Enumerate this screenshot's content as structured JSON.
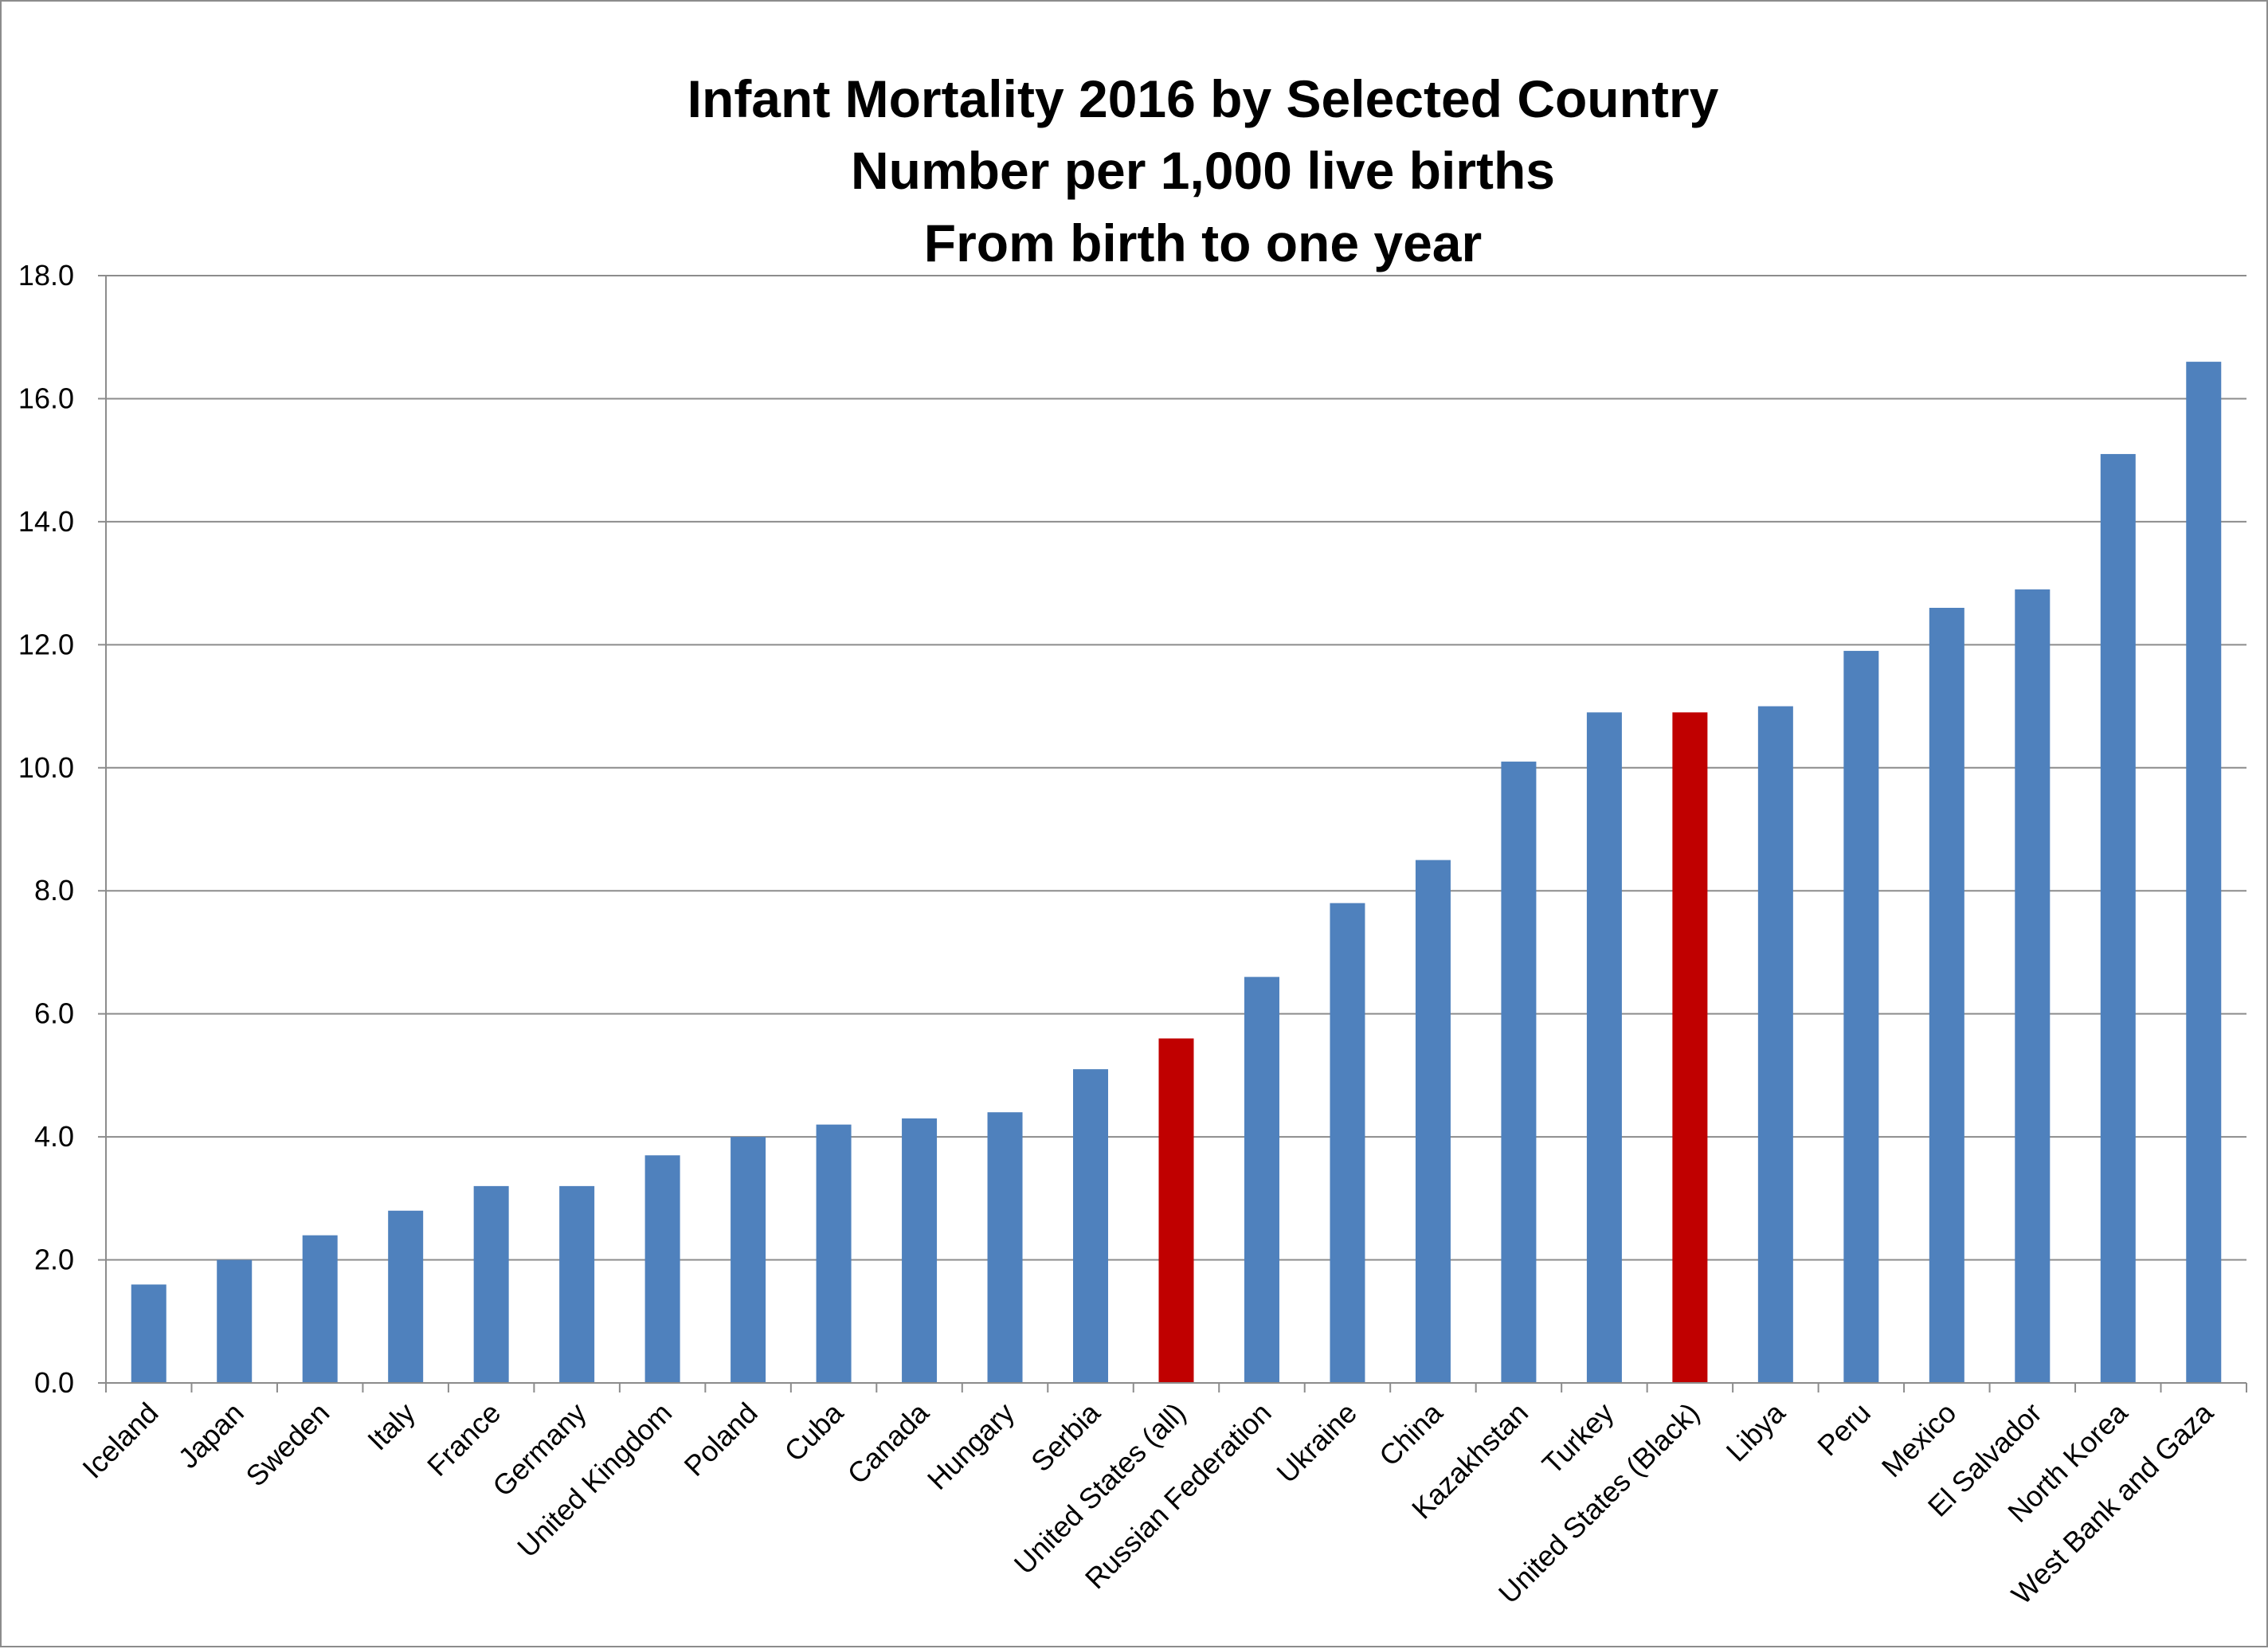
{
  "chart_data": {
    "type": "bar",
    "title": [
      "Infant Mortality 2016 by Selected Country",
      "Number per 1,000 live births",
      "From birth to one year"
    ],
    "xlabel": "",
    "ylabel": "",
    "ylim": [
      0,
      18
    ],
    "yticks": [
      "0.0",
      "2.0",
      "4.0",
      "6.0",
      "8.0",
      "10.0",
      "12.0",
      "14.0",
      "16.0",
      "18.0"
    ],
    "grid": true,
    "legend": "none",
    "categories": [
      "Iceland",
      "Japan",
      "Sweden",
      "Italy",
      "France",
      "Germany",
      "United Kingdom",
      "Poland",
      "Cuba",
      "Canada",
      "Hungary",
      "Serbia",
      "United States (all)",
      "Russian Federation",
      "Ukraine",
      "China",
      "Kazakhstan",
      "Turkey",
      "United States (Black)",
      "Libya",
      "Peru",
      "Mexico",
      "El Salvador",
      "North Korea",
      "West Bank and Gaza"
    ],
    "values": [
      1.6,
      2.0,
      2.4,
      2.8,
      3.2,
      3.2,
      3.7,
      4.0,
      4.2,
      4.3,
      4.4,
      5.1,
      5.6,
      6.6,
      7.8,
      8.5,
      10.1,
      10.9,
      10.9,
      11.0,
      11.9,
      12.6,
      12.9,
      15.1,
      16.6
    ],
    "highlighted": [
      "United States (all)",
      "United States (Black)"
    ],
    "colors": {
      "bar": "#4f81bd",
      "highlight": "#c00000",
      "grid": "#8c8c8c",
      "axis": "#8c8c8c",
      "text": "#000000"
    }
  }
}
